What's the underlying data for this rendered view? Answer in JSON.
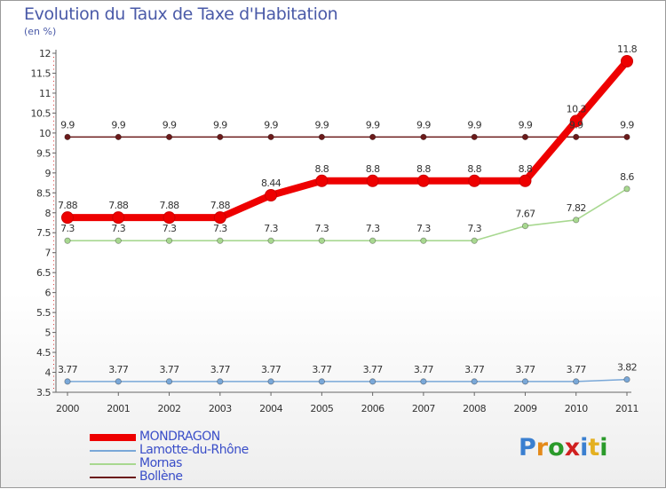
{
  "chart_data": {
    "type": "line",
    "title": "Evolution du Taux de Taxe d'Habitation",
    "ylabel": "(en %)",
    "xlabel": "",
    "categories": [
      "2000",
      "2001",
      "2002",
      "2003",
      "2004",
      "2005",
      "2006",
      "2007",
      "2008",
      "2009",
      "2010",
      "2011"
    ],
    "ylim": [
      3.5,
      12
    ],
    "yticks": [
      3.5,
      4,
      4.5,
      5,
      5.5,
      6,
      6.5,
      7,
      7.5,
      8,
      8.5,
      9,
      9.5,
      10,
      10.5,
      11,
      11.5,
      12
    ],
    "grid": false,
    "legend_position": "bottom-left",
    "series": [
      {
        "name": "Bollène",
        "color": "#6b1a1a",
        "values": [
          9.9,
          9.9,
          9.9,
          9.9,
          9.9,
          9.9,
          9.9,
          9.9,
          9.9,
          9.9,
          9.9,
          9.9
        ],
        "labels": [
          "9.9",
          "9.9",
          "9.9",
          "9.9",
          "9.9",
          "9.9",
          "9.9",
          "9.9",
          "9.9",
          "9.9",
          "9.9",
          "9.9"
        ]
      },
      {
        "name": "Mornas",
        "color": "#a8d890",
        "values": [
          7.3,
          7.3,
          7.3,
          7.3,
          7.3,
          7.3,
          7.3,
          7.3,
          7.3,
          7.67,
          7.82,
          8.6
        ],
        "labels": [
          "7.3",
          "7.3",
          "7.3",
          "7.3",
          "7.3",
          "7.3",
          "7.3",
          "7.3",
          "7.3",
          "7.67",
          "7.82",
          "8.6"
        ]
      },
      {
        "name": "Lamotte-du-Rhône",
        "color": "#7aa8d8",
        "values": [
          3.77,
          3.77,
          3.77,
          3.77,
          3.77,
          3.77,
          3.77,
          3.77,
          3.77,
          3.77,
          3.77,
          3.82
        ],
        "labels": [
          "3.77",
          "3.77",
          "3.77",
          "3.77",
          "3.77",
          "3.77",
          "3.77",
          "3.77",
          "3.77",
          "3.77",
          "3.77",
          "3.82"
        ]
      },
      {
        "name": "MONDRAGON",
        "color": "#ee0000",
        "values": [
          7.88,
          7.88,
          7.88,
          7.88,
          8.44,
          8.8,
          8.8,
          8.8,
          8.8,
          8.8,
          10.3,
          11.8
        ],
        "labels": [
          "7.88",
          "7.88",
          "7.88",
          "7.88",
          "8.44",
          "8.8",
          "8.8",
          "8.8",
          "8.8",
          "8.8",
          "10.3",
          "11.8"
        ]
      }
    ]
  },
  "legend": [
    {
      "name": "MONDRAGON",
      "color": "#ee0000"
    },
    {
      "name": "Lamotte-du-Rhône",
      "color": "#7aa8d8"
    },
    {
      "name": "Mornas",
      "color": "#a8d890"
    },
    {
      "name": "Bollène",
      "color": "#6b1a1a"
    }
  ],
  "logo": {
    "letters": [
      "P",
      "r",
      "o",
      "x",
      "i",
      "t",
      "i"
    ],
    "colors": [
      "#3a7fd0",
      "#e48a1a",
      "#2a9a2a",
      "#d02020",
      "#3a7fd0",
      "#e4b020",
      "#2a9a2a"
    ]
  }
}
